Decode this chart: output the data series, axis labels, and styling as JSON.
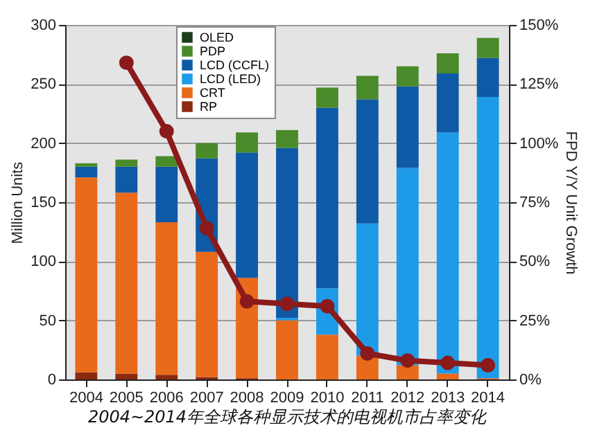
{
  "chart_data": {
    "type": "bar",
    "stacked": true,
    "categories": [
      "2004",
      "2005",
      "2006",
      "2007",
      "2008",
      "2009",
      "2010",
      "2011",
      "2012",
      "2013",
      "2014"
    ],
    "series": [
      {
        "name": "RP",
        "color": "#8b2a10",
        "values": [
          6,
          5,
          4,
          2,
          1,
          0,
          0,
          0,
          0,
          0,
          0
        ]
      },
      {
        "name": "CRT",
        "color": "#e86a1a",
        "values": [
          165,
          153,
          129,
          106,
          85,
          50,
          38,
          20,
          12,
          5,
          1
        ]
      },
      {
        "name": "LCD (LED)",
        "color": "#1e9be8",
        "values": [
          0,
          0,
          0,
          0,
          0,
          2,
          39,
          112,
          167,
          204,
          238
        ]
      },
      {
        "name": "LCD (CCFL)",
        "color": "#0e5aa6",
        "values": [
          9,
          22,
          47,
          79,
          106,
          144,
          153,
          105,
          69,
          50,
          33
        ]
      },
      {
        "name": "PDP",
        "color": "#4a8a2a",
        "values": [
          3,
          6,
          9,
          13,
          17,
          15,
          17,
          20,
          17,
          17,
          17
        ]
      },
      {
        "name": "OLED",
        "color": "#1e3d1e",
        "values": [
          0,
          0,
          0,
          0,
          0,
          0,
          0,
          0,
          0,
          0,
          0
        ]
      },
      {
        "type": "line",
        "axis": "y2",
        "color": "#8b1a1a",
        "values": [
          null,
          134,
          105,
          64,
          33,
          32,
          31,
          11,
          8,
          7,
          6
        ]
      }
    ],
    "ylabel": "Million Units",
    "y2label": "FPD Y/Y Unit Growth",
    "ylim": [
      0,
      300
    ],
    "yticks": [
      0,
      50,
      100,
      150,
      200,
      250,
      300
    ],
    "y2lim": [
      0,
      150
    ],
    "y2ticks": [
      {
        "value": 0,
        "label": "0%"
      },
      {
        "value": 25,
        "label": "25%"
      },
      {
        "value": 50,
        "label": "50%"
      },
      {
        "value": 75,
        "label": "75%"
      },
      {
        "value": 100,
        "label": "100%"
      },
      {
        "value": 125,
        "label": "125%"
      },
      {
        "value": 150,
        "label": "150%"
      }
    ],
    "grid": "y",
    "legend": "top",
    "marker": "circle",
    "line_style": "solid",
    "annotations": [
      "2004~2014年全球各种显示技术的电视机市占率变化"
    ]
  }
}
